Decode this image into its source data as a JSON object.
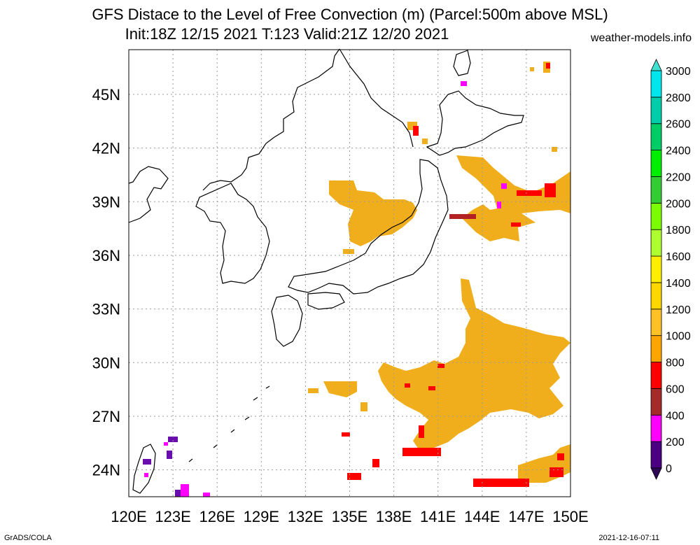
{
  "title": {
    "line1": "GFS Distace to the Level of Free Convection (m) (Parcel:500m above MSL)",
    "line2": "Init:18Z 12/15 2021 T:123 Valid:21Z 12/20 2021"
  },
  "source": "weather-models.info",
  "footer": {
    "left": "GrADS/COLA",
    "right": "2021-12-16-07:11"
  },
  "map": {
    "lon_range": [
      120,
      150
    ],
    "lat_range": [
      22.5,
      47.5
    ],
    "x_ticks": [
      "120E",
      "123E",
      "126E",
      "129E",
      "132E",
      "135E",
      "138E",
      "141E",
      "144E",
      "147E",
      "150E"
    ],
    "y_ticks": [
      "24N",
      "27N",
      "30N",
      "33N",
      "36N",
      "39N",
      "42N",
      "45N"
    ],
    "grid": "dotted"
  },
  "colorbar": {
    "labels": [
      "0",
      "200",
      "400",
      "600",
      "800",
      "1000",
      "1200",
      "1400",
      "1600",
      "1800",
      "2000",
      "2200",
      "2400",
      "2600",
      "2800",
      "3000"
    ],
    "colors": [
      "#4b0082",
      "#ff00ff",
      "#a52a2a",
      "#ff0000",
      "#ffa500",
      "#ffc125",
      "#ffd700",
      "#ffee00",
      "#adff2f",
      "#7cfc00",
      "#32cd32",
      "#00ee00",
      "#00cd66",
      "#00cdaa",
      "#00e5ee"
    ],
    "over_color": "#40e0d0",
    "under_color": "#2e0854"
  },
  "colors": {
    "orange": "#ffa500",
    "amber": "#f0ae1c",
    "red": "#ff0000",
    "brown": "#b22222",
    "magenta": "#ff00ff",
    "purple": "#6a0dad"
  }
}
